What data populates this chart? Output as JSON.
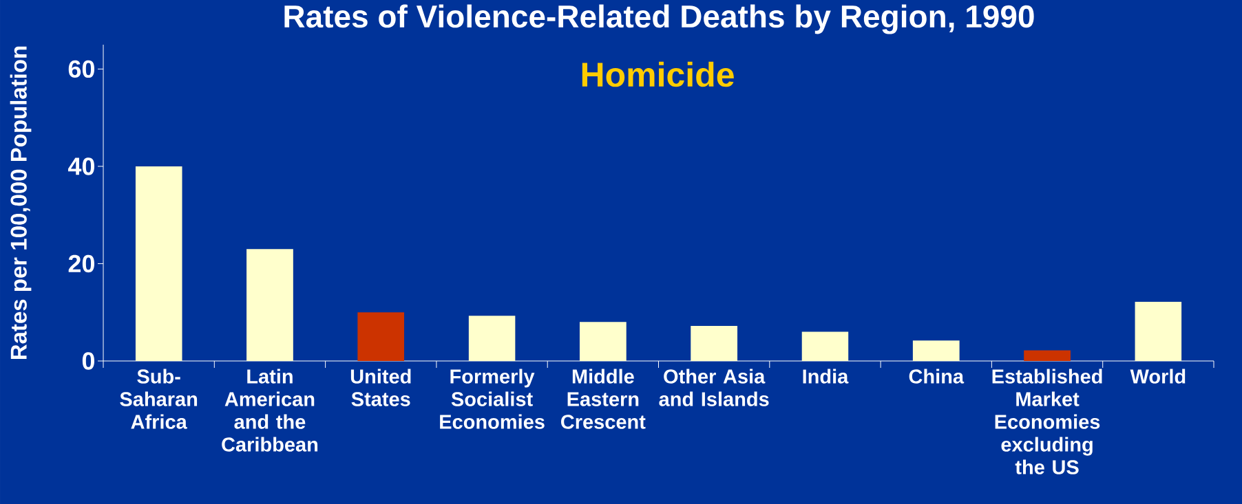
{
  "chart_data": {
    "type": "bar",
    "title": "Rates of Violence-Related Deaths by Region, 1990",
    "subtitle": "Homicide",
    "ylabel": "Rates per 100,000 Population",
    "categories": [
      "Sub-Saharan Africa",
      "Latin American and the Caribbean",
      "United States",
      "Formerly Socialist Economies",
      "Middle Eastern Crescent",
      "Other Asia and Islands",
      "India",
      "China",
      "Established Market Economies excluding the US",
      "World"
    ],
    "values": [
      40,
      23,
      10,
      9.3,
      8,
      7.2,
      6,
      4.2,
      2.2,
      12.2
    ],
    "colors": [
      "#ffffcc",
      "#ffffcc",
      "#cc3300",
      "#ffffcc",
      "#ffffcc",
      "#ffffcc",
      "#ffffcc",
      "#ffffcc",
      "#cc3300",
      "#ffffcc"
    ],
    "ylim": [
      0,
      65
    ],
    "yticks": [
      0,
      20,
      40,
      60
    ]
  }
}
